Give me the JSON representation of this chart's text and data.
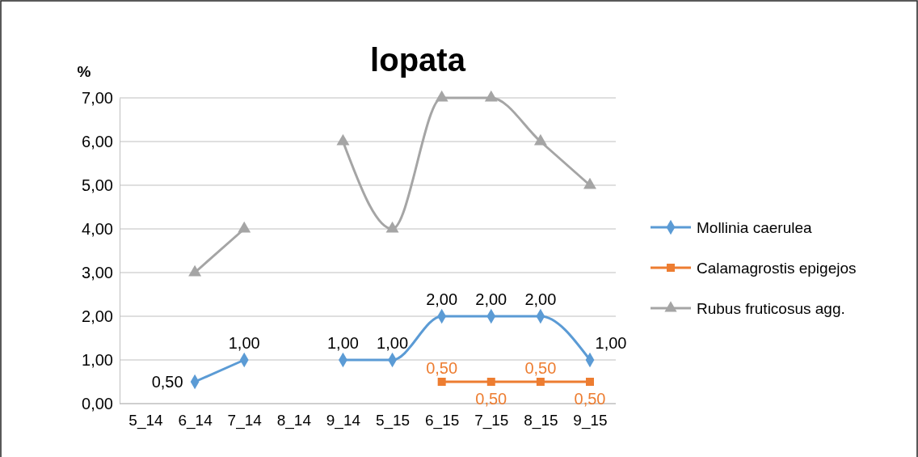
{
  "chart_data": {
    "type": "line",
    "title": "lopata",
    "ylabel": "%",
    "categories": [
      "5_14",
      "6_14",
      "7_14",
      "8_14",
      "9_14",
      "5_15",
      "6_15",
      "7_15",
      "8_15",
      "9_15"
    ],
    "series": [
      {
        "name": "Mollinia caerulea",
        "color": "#5b9bd5",
        "marker": "diamond",
        "values": [
          null,
          0.5,
          1,
          null,
          1,
          1,
          2,
          2,
          2,
          1
        ],
        "value_labels": [
          null,
          "0,50",
          "1,00",
          null,
          "1,00",
          "1,00",
          "2,00",
          "2,00",
          "2,00",
          "1,00"
        ]
      },
      {
        "name": "Calamagrostis epigejos",
        "color": "#ed7d31",
        "marker": "square",
        "values": [
          null,
          null,
          null,
          null,
          null,
          null,
          0.5,
          0.5,
          0.5,
          0.5
        ],
        "value_labels": [
          null,
          null,
          null,
          null,
          null,
          null,
          "0,50",
          "0,50",
          "0,50",
          "0,50"
        ]
      },
      {
        "name": "Rubus fruticosus agg.",
        "color": "#a5a5a5",
        "marker": "triangle",
        "values": [
          null,
          3,
          4,
          null,
          6,
          4,
          7,
          7,
          6,
          5
        ]
      }
    ],
    "ylim": [
      0,
      7
    ],
    "yticks": [
      {
        "value": 0,
        "label": "0,00"
      },
      {
        "value": 1,
        "label": "1,00"
      },
      {
        "value": 2,
        "label": "2,00"
      },
      {
        "value": 3,
        "label": "3,00"
      },
      {
        "value": 4,
        "label": "4,00"
      },
      {
        "value": 5,
        "label": "5,00"
      },
      {
        "value": 6,
        "label": "6,00"
      },
      {
        "value": 7,
        "label": "7,00"
      }
    ],
    "grid": "y",
    "legend": "right"
  }
}
